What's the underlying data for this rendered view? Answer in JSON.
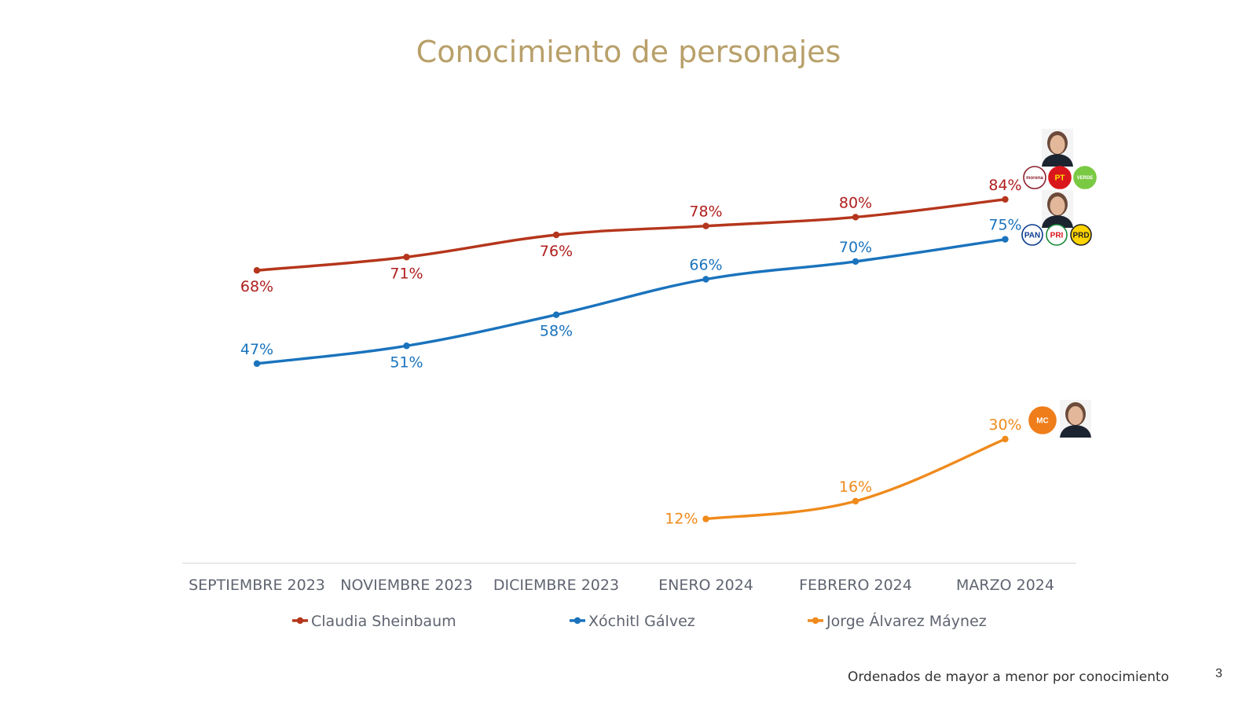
{
  "chart_data": {
    "type": "line",
    "title": "Conocimiento de personajes",
    "categories": [
      "SEPTIEMBRE 2023",
      "NOVIEMBRE 2023",
      "DICIEMBRE 2023",
      "ENERO 2024",
      "FEBRERO 2024",
      "MARZO 2024"
    ],
    "ylim": [
      0,
      100
    ],
    "grid": false,
    "legend": "bottom",
    "series": [
      {
        "name": "Claudia Sheinbaum",
        "color": "#b5361c",
        "label_color": "#b01e1e",
        "values": [
          68,
          71,
          76,
          78,
          80,
          84
        ],
        "labels": [
          "68%",
          "71%",
          "76%",
          "78%",
          "80%",
          "84%"
        ],
        "label_side": [
          "below",
          "below",
          "below",
          "above",
          "above",
          "above"
        ]
      },
      {
        "name": "Xóchitl Gálvez",
        "color": "#1a73bd",
        "label_color": "#1a73bd",
        "values": [
          47,
          51,
          58,
          66,
          70,
          75
        ],
        "labels": [
          "47%",
          "51%",
          "58%",
          "66%",
          "70%",
          "75%"
        ],
        "label_side": [
          "above",
          "below",
          "below",
          "above",
          "above",
          "above"
        ]
      },
      {
        "name": "Jorge Álvarez Máynez",
        "color": "#ef8a1c",
        "label_color": "#ef8a1c",
        "values": [
          null,
          null,
          null,
          12,
          16,
          30
        ],
        "labels": [
          "",
          "",
          "",
          "12%",
          "16%",
          "30%"
        ],
        "label_side": [
          "",
          "",
          "",
          "left",
          "above",
          "above"
        ]
      }
    ]
  },
  "party_logos": {
    "sheinbaum": [
      {
        "text": "morena",
        "bg": "#ffffff",
        "fg": "#8a1f2a",
        "border": "#8a1f2a"
      },
      {
        "text": "PT",
        "bg": "#d9161c",
        "fg": "#ffe600",
        "border": "#d9161c"
      },
      {
        "text": "VERDE",
        "bg": "#7ac943",
        "fg": "#ffffff",
        "border": "#7ac943"
      }
    ],
    "galvez": [
      {
        "text": "PAN",
        "bg": "#ffffff",
        "fg": "#0a3a8c",
        "border": "#0a3a8c"
      },
      {
        "text": "PRI",
        "bg": "#ffffff",
        "fg": "#d9161c",
        "border": "#1a8a3a"
      },
      {
        "text": "PRD",
        "bg": "#ffd400",
        "fg": "#222222",
        "border": "#222222"
      }
    ],
    "maynez": [
      {
        "text": "MC",
        "bg": "#ef7d1a",
        "fg": "#ffffff",
        "border": "#ef7d1a"
      }
    ]
  },
  "footnote": "Ordenados de mayor a menor por conocimiento",
  "page_number": "3"
}
